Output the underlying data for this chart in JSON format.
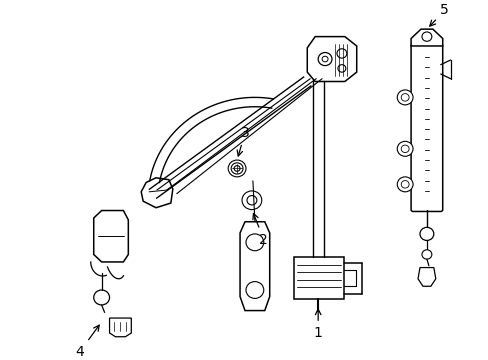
{
  "background_color": "#ffffff",
  "line_color": "#000000",
  "fig_width": 4.89,
  "fig_height": 3.6,
  "dpi": 100,
  "label_fontsize": 10
}
